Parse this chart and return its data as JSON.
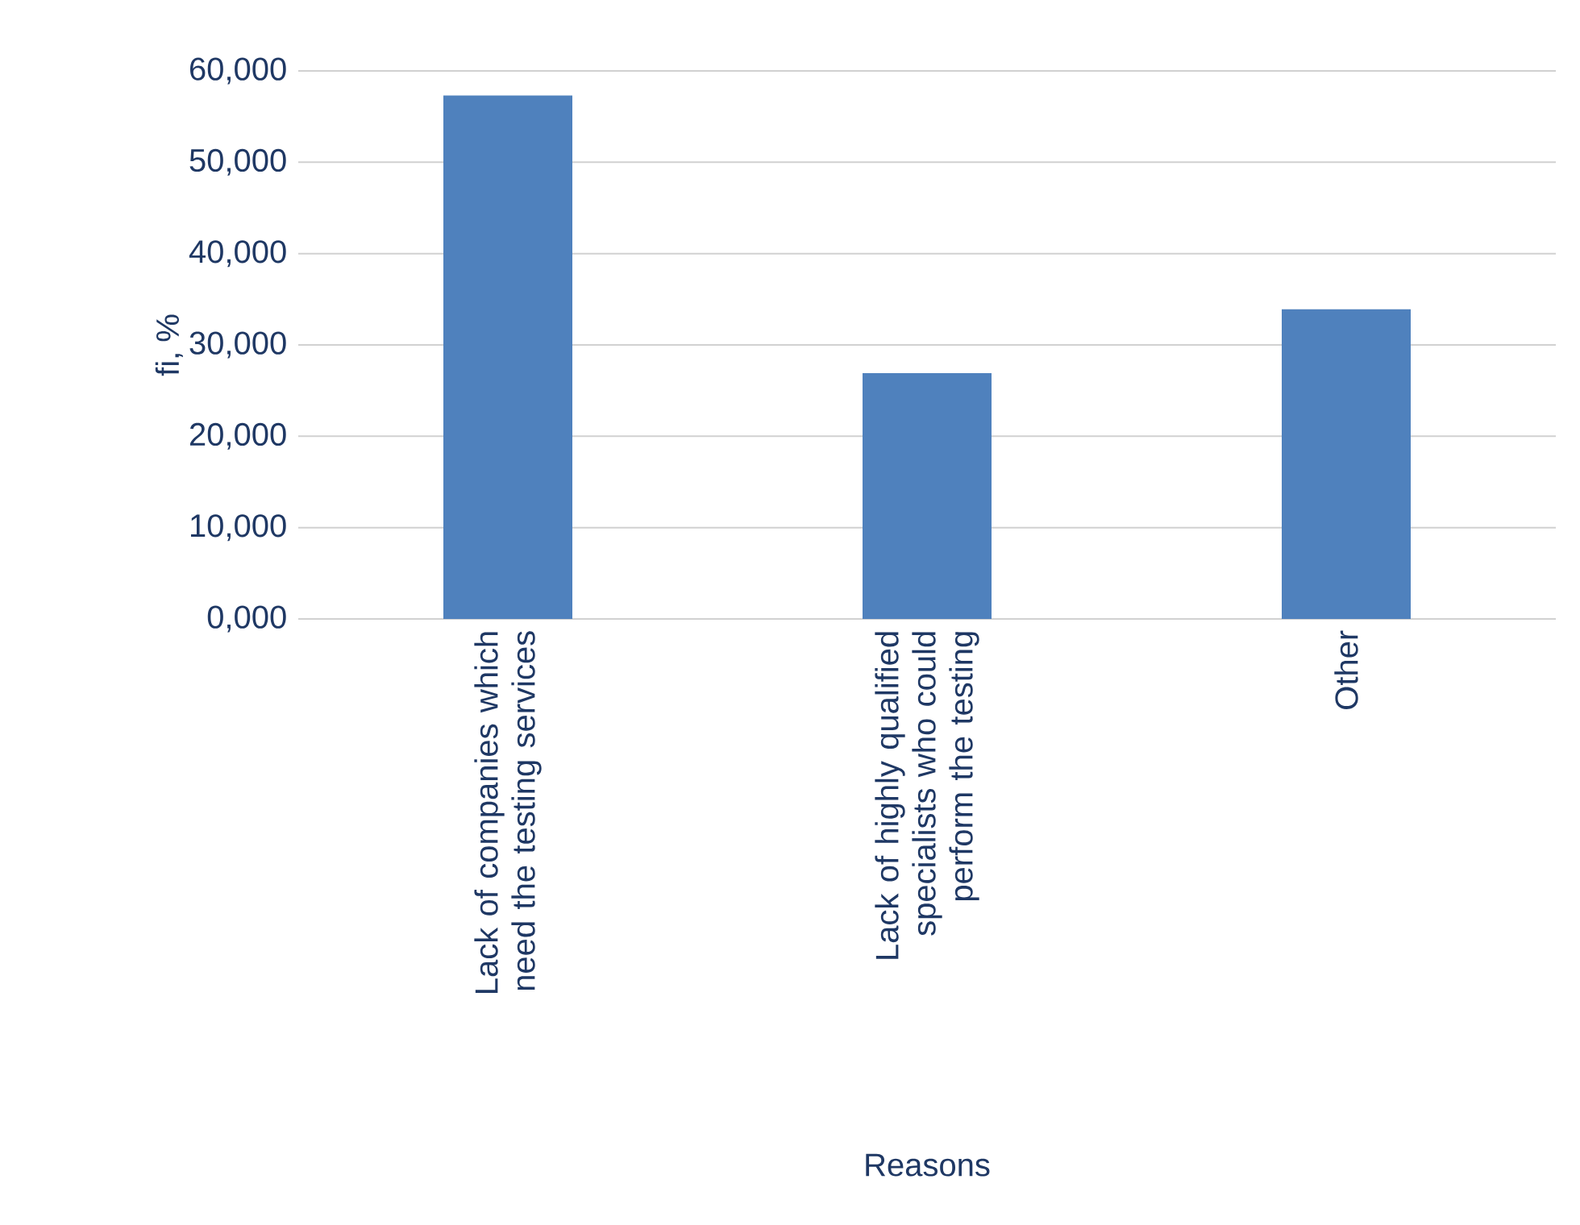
{
  "chart_data": {
    "type": "bar",
    "xlabel": "Reasons",
    "ylabel": "fi, %",
    "categories": [
      "Lack of companies which need the testing services",
      "Lack of highly qualified specialists who could perform the testing",
      "Other"
    ],
    "values": [
      57300,
      26900,
      33900
    ],
    "color": "#4f81bd",
    "ylim": [
      0,
      60000
    ],
    "yticks": [
      {
        "value": 0,
        "label": "0,000"
      },
      {
        "value": 10000,
        "label": "10,000"
      },
      {
        "value": 20000,
        "label": "20,000"
      },
      {
        "value": 30000,
        "label": "30,000"
      },
      {
        "value": 40000,
        "label": "40,000"
      },
      {
        "value": 50000,
        "label": "50,000"
      },
      {
        "value": 60000,
        "label": "60,000"
      }
    ],
    "grid": "y"
  }
}
